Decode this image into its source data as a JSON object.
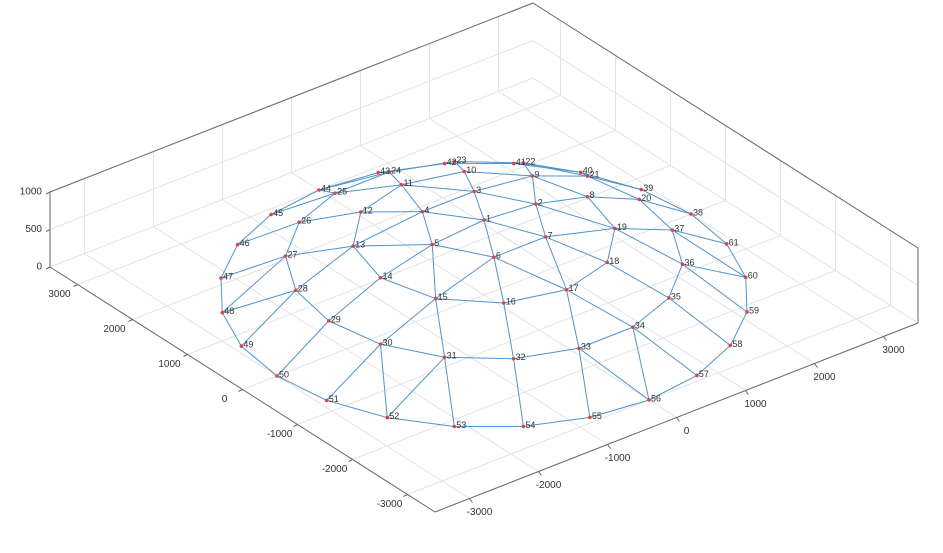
{
  "chart_data": {
    "type": "mesh3d",
    "x": [
      0,
      750,
      375,
      -375,
      -750,
      -375,
      375,
      1500,
      1299,
      750,
      0,
      -750,
      -1299,
      -1500,
      -1299,
      -750,
      0,
      750,
      1299,
      2250,
      2114,
      1724,
      1125,
      391,
      -391,
      -1125,
      -1724,
      -2114,
      -2250,
      -2114,
      -1724,
      -1125,
      -391,
      391,
      1125,
      1724,
      2114,
      3000,
      2898,
      2598,
      2121,
      1500,
      776,
      0,
      -776,
      -1500,
      -2121,
      -2598,
      -2898,
      -3000,
      -2898,
      -2598,
      -2121,
      -1500,
      -776,
      0,
      776,
      1500,
      2121,
      2598,
      2898
    ],
    "y": [
      0,
      0,
      650,
      650,
      0,
      -650,
      -650,
      0,
      750,
      1299,
      1500,
      1299,
      750,
      0,
      -750,
      -1299,
      -1500,
      -1299,
      -750,
      0,
      770,
      1446,
      1949,
      2216,
      2216,
      1949,
      1446,
      770,
      0,
      -770,
      -1446,
      -1949,
      -2216,
      -2216,
      -1949,
      -1446,
      -770,
      0,
      776,
      1500,
      2121,
      2598,
      2898,
      3000,
      2898,
      2598,
      2121,
      1500,
      776,
      0,
      -776,
      -1500,
      -2121,
      -2598,
      -2898,
      -3000,
      -2898,
      -2598,
      -2121,
      -1500,
      -776
    ],
    "z": [
      1000,
      943,
      943,
      943,
      943,
      943,
      943,
      770,
      770,
      770,
      770,
      770,
      770,
      770,
      770,
      770,
      770,
      770,
      770,
      465,
      465,
      465,
      465,
      465,
      465,
      465,
      465,
      465,
      465,
      465,
      465,
      465,
      465,
      465,
      465,
      465,
      465,
      0,
      0,
      0,
      0,
      0,
      0,
      0,
      0,
      0,
      0,
      0,
      0,
      0,
      0,
      0,
      0,
      0,
      0,
      0,
      0,
      0,
      0,
      0,
      0
    ],
    "labels": [
      1,
      2,
      3,
      4,
      5,
      6,
      7,
      8,
      9,
      10,
      11,
      12,
      13,
      14,
      15,
      16,
      17,
      18,
      19,
      20,
      21,
      22,
      23,
      24,
      25,
      26,
      27,
      28,
      29,
      30,
      31,
      32,
      33,
      34,
      35,
      36,
      37,
      38,
      39,
      40,
      41,
      42,
      43,
      44,
      45,
      46,
      47,
      48,
      49,
      50,
      51,
      52,
      53,
      54,
      55,
      56,
      57,
      58,
      59,
      60,
      61
    ],
    "xlim": [
      -3500,
      3500
    ],
    "ylim": [
      -3500,
      3500
    ],
    "zlim": [
      0,
      1000
    ],
    "xticks": [
      -3000,
      -2000,
      -1000,
      0,
      1000,
      2000,
      3000
    ],
    "yticks": [
      -3000,
      -2000,
      -1000,
      0,
      1000,
      2000,
      3000
    ],
    "zticks": [
      0,
      500,
      1000
    ],
    "grid": true,
    "edge_color": "#4f94cd",
    "marker_color": "#d9434a"
  }
}
